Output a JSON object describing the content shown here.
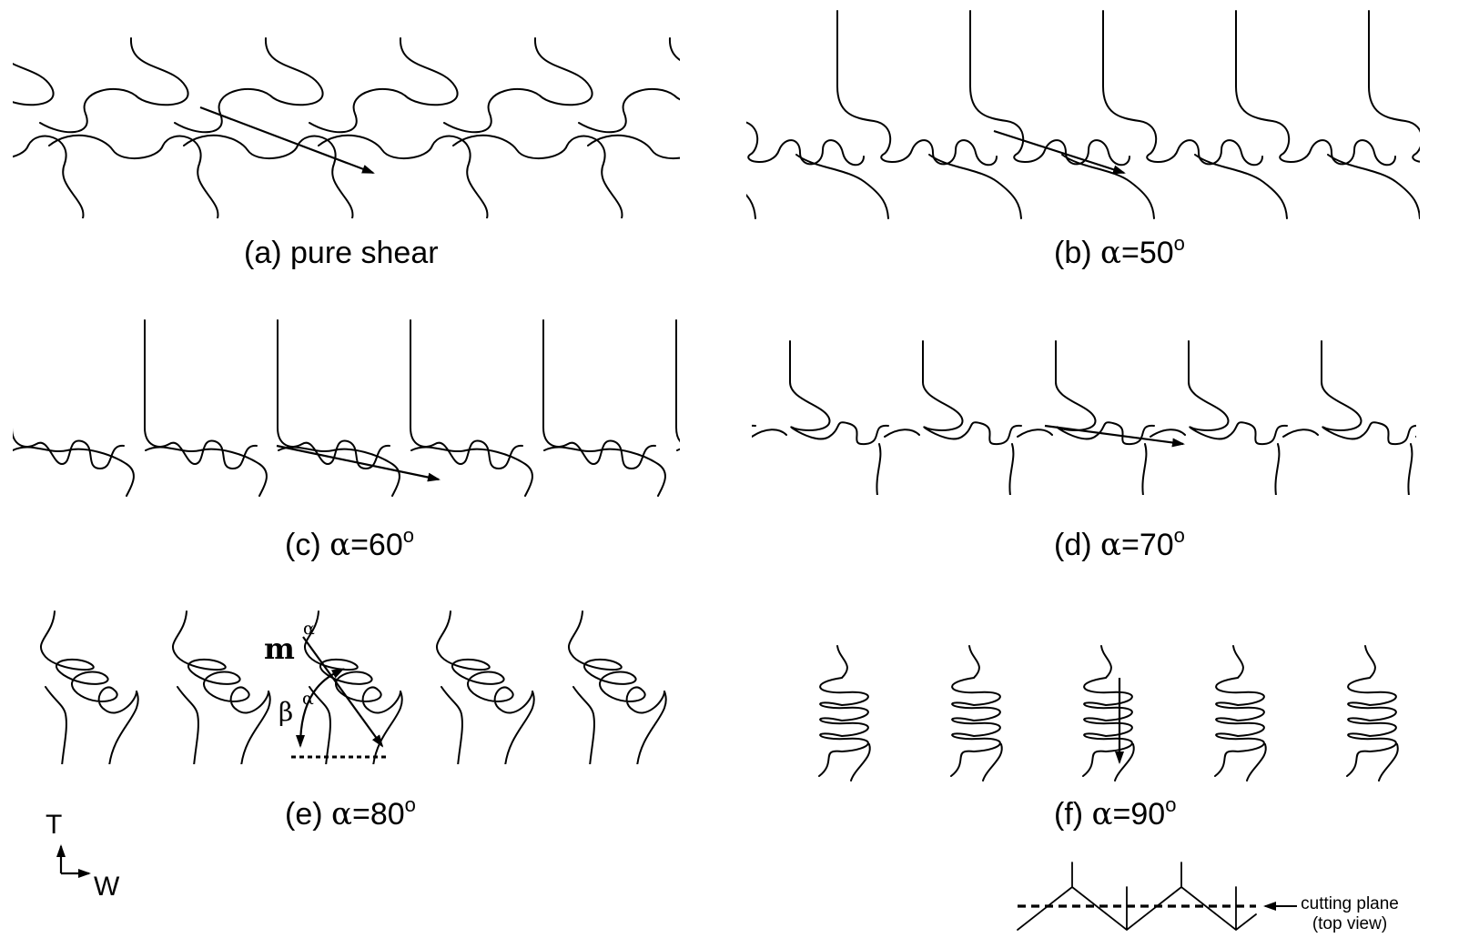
{
  "panels": [
    {
      "id": "a",
      "prefix": "(a) pure shear",
      "symbol": "",
      "value": "",
      "degree": ""
    },
    {
      "id": "b",
      "prefix": "(b) ",
      "symbol": "α",
      "value": "=50",
      "degree": "o"
    },
    {
      "id": "c",
      "prefix": "(c) ",
      "symbol": "α",
      "value": "=60",
      "degree": "o"
    },
    {
      "id": "d",
      "prefix": "(d) ",
      "symbol": "α",
      "value": "=70",
      "degree": "o"
    },
    {
      "id": "e",
      "prefix": "(e) ",
      "symbol": "α",
      "value": "=80",
      "degree": "o"
    },
    {
      "id": "f",
      "prefix": "(f) ",
      "symbol": "α",
      "value": "=90",
      "degree": "o"
    }
  ],
  "annotations": {
    "m": "m",
    "m_superscript": "α",
    "beta": "β",
    "beta_superscript": "α"
  },
  "axes": {
    "vertical": "T",
    "horizontal": "W"
  },
  "cutting_plane": {
    "line1": "cutting plane",
    "line2": "(top view)"
  }
}
